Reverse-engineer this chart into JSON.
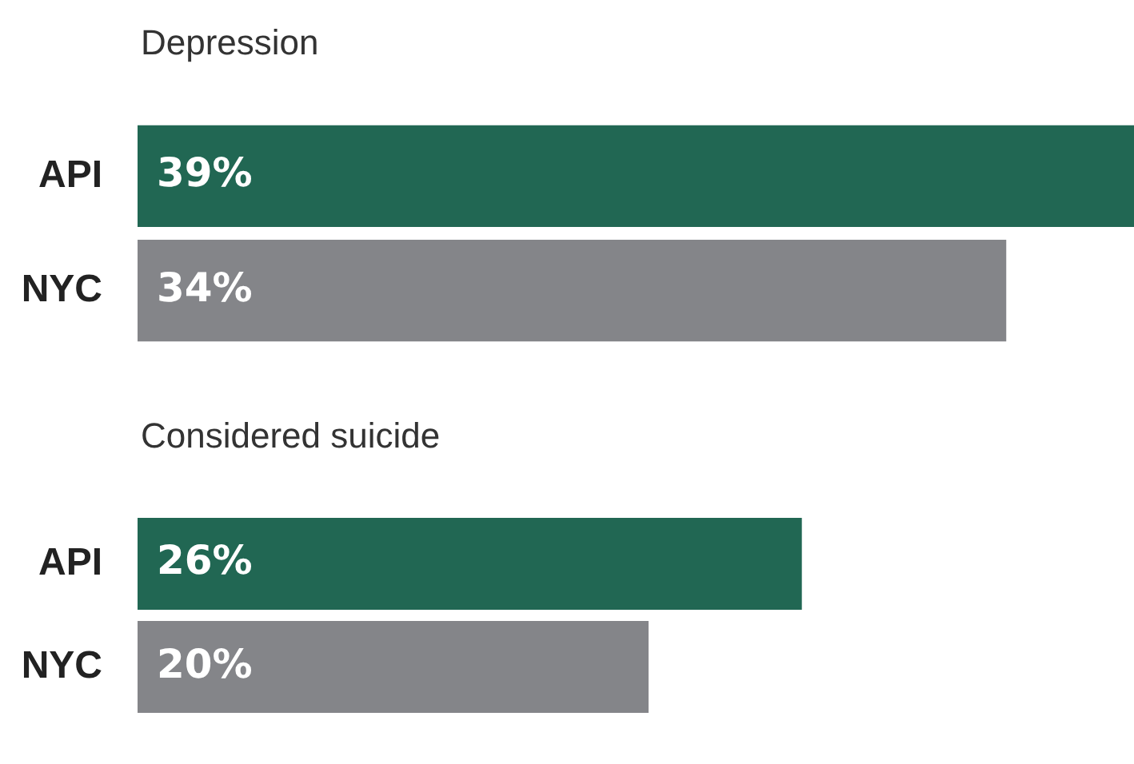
{
  "chart_data": [
    {
      "type": "bar",
      "orientation": "horizontal",
      "title": "Depression",
      "categories": [
        "API",
        "NYC"
      ],
      "values": [
        39,
        34
      ],
      "colors": [
        "#216753",
        "#848589"
      ],
      "value_labels": [
        "39%",
        "34%"
      ]
    },
    {
      "type": "bar",
      "orientation": "horizontal",
      "title": "Considered suicide",
      "categories": [
        "API",
        "NYC"
      ],
      "values": [
        26,
        20
      ],
      "colors": [
        "#216753",
        "#848589"
      ],
      "value_labels": [
        "26%",
        "20%"
      ]
    }
  ]
}
